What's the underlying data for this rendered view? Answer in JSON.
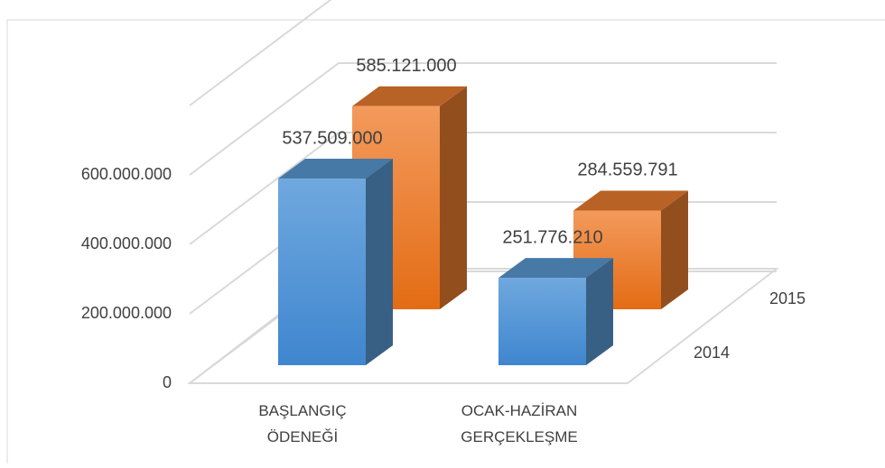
{
  "chart_data": {
    "type": "bar3d",
    "categories": [
      "BAŞLANGIÇ ÖDENEĞİ",
      "OCAK-HAZİRAN GERÇEKLEŞME"
    ],
    "series": [
      {
        "name": "2014",
        "color": "#5b9bd5",
        "values": [
          537509000,
          251776210
        ],
        "value_labels": [
          "537.509.000",
          "251.776.210"
        ]
      },
      {
        "name": "2015",
        "color": "#ed7d31",
        "values": [
          585121000,
          284559791
        ],
        "value_labels": [
          "585.121.000",
          "284.559.791"
        ]
      }
    ],
    "ylim": [
      0,
      800000000
    ],
    "yticks": [
      0,
      {
        "value": 200000000,
        "label": "200.000.000"
      },
      {
        "value": 400000000,
        "label": "400.000.000"
      },
      {
        "value": 600000000,
        "label": "600.000.000"
      }
    ],
    "grid": true
  }
}
